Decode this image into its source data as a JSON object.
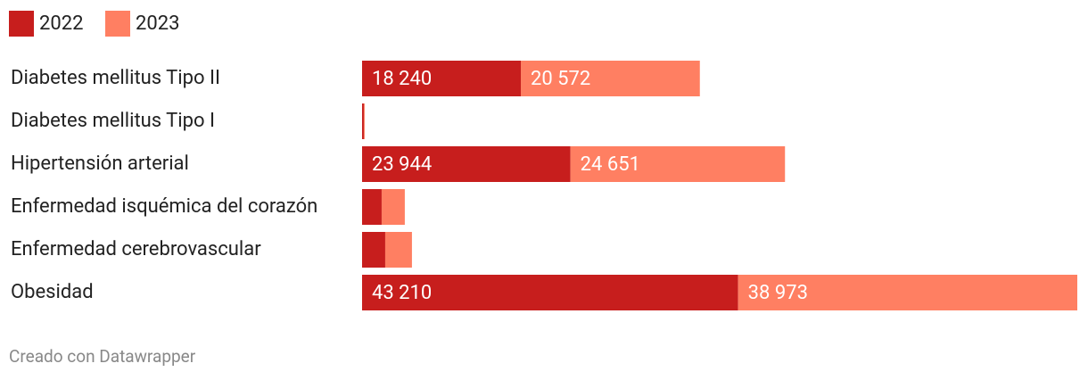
{
  "chart_data": {
    "type": "stacked_bar_horizontal",
    "categories": [
      "Diabetes mellitus Tipo II",
      "Diabetes mellitus Tipo I",
      "Hipertensión arterial",
      "Enfermedad isquémica del corazón",
      "Enfermedad cerebrovascular",
      "Obesidad"
    ],
    "series": [
      {
        "name": "2022",
        "color": "#c71e1d",
        "values": [
          18240,
          200,
          23944,
          2250,
          2660,
          43210
        ],
        "value_labels": [
          "18 240",
          null,
          "23 944",
          null,
          null,
          "43 210"
        ]
      },
      {
        "name": "2023",
        "color": "#ff7f62",
        "values": [
          20572,
          100,
          24651,
          2660,
          3070,
          38973
        ],
        "value_labels": [
          "20 572",
          null,
          "24 651",
          null,
          null,
          "38 973"
        ]
      }
    ],
    "footer": "Creado con Datawrapper"
  }
}
